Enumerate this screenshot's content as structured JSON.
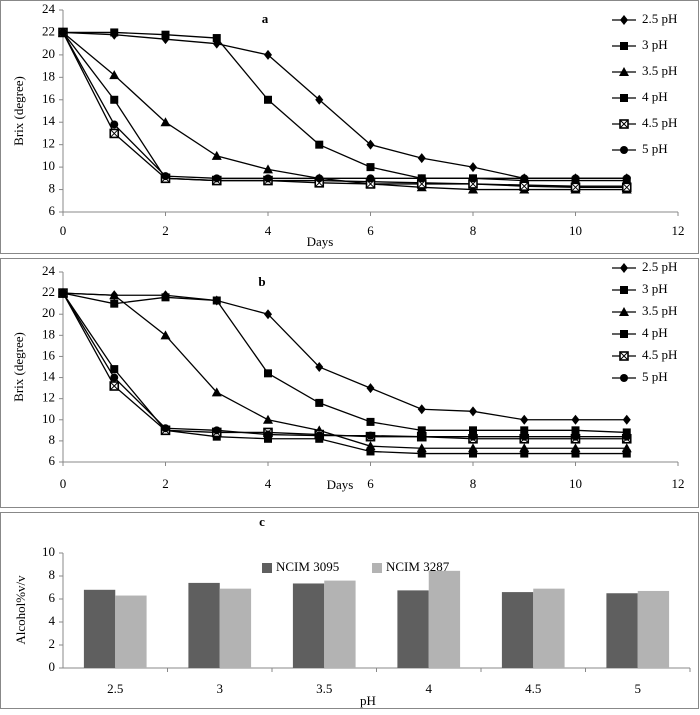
{
  "chart_data": [
    {
      "type": "line",
      "title": "a",
      "x_label": "Days",
      "y_label": "Brix (degree)",
      "x": [
        0,
        1,
        2,
        3,
        4,
        5,
        6,
        7,
        8,
        9,
        10,
        11
      ],
      "xlim": [
        0,
        12
      ],
      "xticks": [
        0,
        2,
        4,
        6,
        8,
        10,
        12
      ],
      "ylim": [
        6,
        24
      ],
      "yticks": [
        6,
        8,
        10,
        12,
        14,
        16,
        18,
        20,
        22,
        24
      ],
      "series": [
        {
          "name": "2.5 pH",
          "color": "#000000",
          "marker": "diamond",
          "values": [
            22,
            21.8,
            21.4,
            21,
            20,
            16,
            12,
            10.8,
            10,
            9,
            9,
            9
          ]
        },
        {
          "name": "3 pH",
          "color": "#000000",
          "marker": "square",
          "values": [
            22,
            22,
            21.8,
            21.5,
            16,
            12,
            10,
            9,
            9,
            8.8,
            8.8,
            8.8
          ]
        },
        {
          "name": "3.5 pH",
          "color": "#000000",
          "marker": "triangle",
          "values": [
            22,
            18.2,
            14,
            11,
            9.8,
            9,
            8.5,
            8.2,
            8,
            8,
            8,
            8
          ]
        },
        {
          "name": "4 pH",
          "color": "#000000",
          "marker": "square",
          "values": [
            22,
            16,
            9,
            8.8,
            8.8,
            8.8,
            8.7,
            8.6,
            8.5,
            8.4,
            8.3,
            8.3
          ]
        },
        {
          "name": "4.5 pH",
          "color": "#000000",
          "marker": "boxed",
          "values": [
            22,
            13,
            9,
            8.8,
            8.8,
            8.6,
            8.5,
            8.5,
            8.5,
            8.3,
            8.2,
            8.2
          ]
        },
        {
          "name": "5 pH",
          "color": "#000000",
          "marker": "circle",
          "values": [
            22,
            13.8,
            9.2,
            9,
            9,
            9,
            9,
            9,
            9,
            9,
            9,
            9
          ]
        }
      ]
    },
    {
      "type": "line",
      "title": "b",
      "x_label": "Days",
      "y_label": "Brix (degree)",
      "x": [
        0,
        1,
        2,
        3,
        4,
        5,
        6,
        7,
        8,
        9,
        10,
        11
      ],
      "xlim": [
        0,
        12
      ],
      "xticks": [
        0,
        2,
        4,
        6,
        8,
        10,
        12
      ],
      "ylim": [
        6,
        24
      ],
      "yticks": [
        6,
        8,
        10,
        12,
        14,
        16,
        18,
        20,
        22,
        24
      ],
      "series": [
        {
          "name": "2.5 pH",
          "color": "#000000",
          "marker": "diamond",
          "values": [
            22,
            21.8,
            21.8,
            21.3,
            20,
            15,
            13,
            11,
            10.8,
            10,
            10,
            10
          ]
        },
        {
          "name": "3 pH",
          "color": "#000000",
          "marker": "square",
          "values": [
            22,
            21,
            21.6,
            21.3,
            14.4,
            11.6,
            9.8,
            9,
            9,
            9,
            9,
            8.8
          ]
        },
        {
          "name": "3.5 pH",
          "color": "#000000",
          "marker": "triangle",
          "values": [
            22,
            21.8,
            18,
            12.6,
            10,
            9,
            7.5,
            7.3,
            7.3,
            7.3,
            7.3,
            7.3
          ]
        },
        {
          "name": "4 pH",
          "color": "#000000",
          "marker": "square",
          "values": [
            22,
            14.8,
            9,
            8.4,
            8.2,
            8.2,
            7,
            6.8,
            6.8,
            6.8,
            6.8,
            6.8
          ]
        },
        {
          "name": "4.5 pH",
          "color": "#000000",
          "marker": "boxed",
          "values": [
            22,
            13.2,
            9,
            8.8,
            8.8,
            8.6,
            8.4,
            8.4,
            8.2,
            8.2,
            8.2,
            8.2
          ]
        },
        {
          "name": "5 pH",
          "color": "#000000",
          "marker": "circle",
          "values": [
            22,
            14,
            9.2,
            9,
            8.6,
            8.5,
            8.5,
            8.4,
            8.4,
            8.4,
            8.4,
            8.4
          ]
        }
      ]
    },
    {
      "type": "bar",
      "title": "c",
      "x_label": "pH",
      "y_label": "Alcohol%v/v",
      "categories": [
        "2.5",
        "3",
        "3.5",
        "4",
        "4.5",
        "5"
      ],
      "ylim": [
        0,
        10
      ],
      "yticks": [
        0,
        2,
        4,
        6,
        8,
        10
      ],
      "series": [
        {
          "name": "NCIM 3095",
          "color": "#5f5f5f",
          "values": [
            6.8,
            7.4,
            7.35,
            6.75,
            6.6,
            6.5
          ]
        },
        {
          "name": "NCIM 3287",
          "color": "#b3b3b3",
          "values": [
            6.3,
            6.9,
            7.6,
            8.45,
            6.9,
            6.7
          ]
        }
      ]
    }
  ]
}
